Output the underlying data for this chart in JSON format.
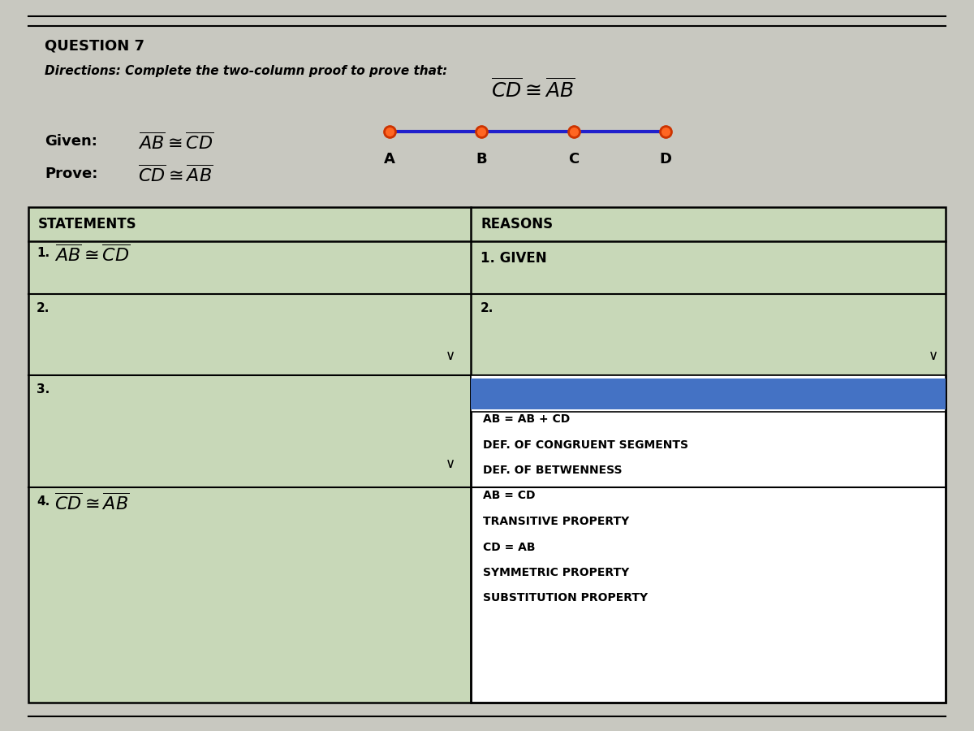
{
  "bg_color": "#c8c8c0",
  "page_bg": "#c8c8ba",
  "title": "QUESTION 7",
  "directions": "Directions: Complete the two-column proof to prove that:",
  "table_header_left": "STATEMENTS",
  "table_header_right": "REASONS",
  "dropdown_items": [
    "AB = AB + CD",
    "DEF. OF CONGRUENT SEGMENTS",
    "DEF. OF BETWENNESS",
    "AB = CD",
    "TRANSITIVE PROPERTY",
    "CD = AB",
    "SYMMETRIC PROPERTY",
    "SUBSTITUTION PROPERTY"
  ],
  "dropdown_highlight": "#4472c4",
  "line_color": "#2020cc",
  "dot_outer": "#cc3300",
  "dot_inner": "#ff6622",
  "segment_labels": [
    "A",
    "B",
    "C",
    "D"
  ],
  "table_bg": "#c8d8b8",
  "table_row_bg": "#c8d8b8"
}
